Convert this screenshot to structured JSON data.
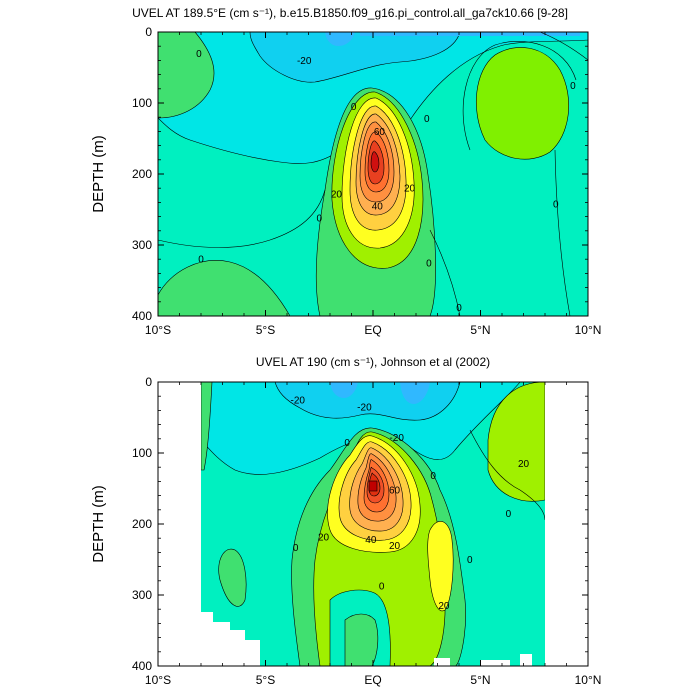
{
  "chart_data": [
    {
      "type": "heatmap",
      "subtype": "filled-contour",
      "title": "UVEL AT 189.5°E (cm s⁻¹), b.e15.B1850.f09_g16.pi_control.all_ga7ck10.66 [9-28]",
      "xlabel": "",
      "ylabel": "DEPTH (m)",
      "xlim": [
        -10,
        10
      ],
      "ylim": [
        400,
        0
      ],
      "y_reversed": true,
      "x_ticks": [
        -10,
        -5,
        0,
        5,
        10
      ],
      "x_tick_labels": [
        "10°S",
        "5°S",
        "EQ",
        "5°N",
        "10°N"
      ],
      "y_ticks": [
        0,
        100,
        200,
        300,
        400
      ],
      "y_tick_labels": [
        "0",
        "100",
        "200",
        "300",
        "400"
      ],
      "contour_interval": 10,
      "data_extent": {
        "lon_min": -10,
        "lon_max": 10
      },
      "features": [
        {
          "name": "Equatorial Undercurrent core",
          "x": 0,
          "y": 165,
          "max": 80
        },
        {
          "name": "Surface westward flow",
          "x": -3,
          "y": 0,
          "min": -30
        },
        {
          "name": "Eastward flow north",
          "x": 7,
          "y": 90,
          "value": 10
        },
        {
          "name": "Eastward flow south",
          "x": -8,
          "y": 360,
          "value": 10
        }
      ],
      "contour_labels": [
        {
          "text": "0",
          "x": -8.1,
          "y": 30
        },
        {
          "text": "-20",
          "x": -3.2,
          "y": 40
        },
        {
          "text": "0",
          "x": -0.9,
          "y": 105
        },
        {
          "text": "0",
          "x": 2.5,
          "y": 122
        },
        {
          "text": "0",
          "x": 9.3,
          "y": 75
        },
        {
          "text": "60",
          "x": 0.3,
          "y": 140
        },
        {
          "text": "20",
          "x": -1.7,
          "y": 228
        },
        {
          "text": "20",
          "x": 1.7,
          "y": 220
        },
        {
          "text": "40",
          "x": 0.2,
          "y": 245
        },
        {
          "text": "0",
          "x": -2.5,
          "y": 262
        },
        {
          "text": "0",
          "x": 8.5,
          "y": 242
        },
        {
          "text": "0",
          "x": -8.0,
          "y": 320
        },
        {
          "text": "0",
          "x": 2.6,
          "y": 325
        },
        {
          "text": "0",
          "x": 4.0,
          "y": 388
        }
      ]
    },
    {
      "type": "heatmap",
      "subtype": "filled-contour",
      "title": "UVEL AT 190 (cm s⁻¹), Johnson et al (2002)",
      "xlabel": "",
      "ylabel": "DEPTH (m)",
      "xlim": [
        -10,
        10
      ],
      "ylim": [
        400,
        0
      ],
      "y_reversed": true,
      "x_ticks": [
        -10,
        -5,
        0,
        5,
        10
      ],
      "x_tick_labels": [
        "10°S",
        "5°S",
        "EQ",
        "5°N",
        "10°N"
      ],
      "y_ticks": [
        0,
        100,
        200,
        300,
        400
      ],
      "y_tick_labels": [
        "0",
        "100",
        "200",
        "300",
        "400"
      ],
      "contour_interval": 10,
      "data_extent": {
        "lon_min": -8,
        "lon_max": 8
      },
      "features": [
        {
          "name": "Equatorial Undercurrent core",
          "x": 0,
          "y": 150,
          "max": 90
        },
        {
          "name": "Surface westward flow",
          "x": 0,
          "y": 20,
          "min": -30
        },
        {
          "name": "Eastward flow north",
          "x": 6.5,
          "y": 70,
          "value": 30
        },
        {
          "name": "Subsurface eastward jet",
          "x": 3,
          "y": 240,
          "value": 30
        }
      ],
      "contour_labels": [
        {
          "text": "-20",
          "x": -3.5,
          "y": 25
        },
        {
          "text": "-20",
          "x": -0.4,
          "y": 35
        },
        {
          "text": "0",
          "x": -1.2,
          "y": 85
        },
        {
          "text": "-20",
          "x": 1.1,
          "y": 78
        },
        {
          "text": "0",
          "x": 2.8,
          "y": 132
        },
        {
          "text": "60",
          "x": 1.0,
          "y": 152
        },
        {
          "text": "20",
          "x": -2.3,
          "y": 218
        },
        {
          "text": "40",
          "x": -0.1,
          "y": 222
        },
        {
          "text": "20",
          "x": 1.0,
          "y": 230
        },
        {
          "text": "20",
          "x": 7.0,
          "y": 115
        },
        {
          "text": "0",
          "x": 6.3,
          "y": 185
        },
        {
          "text": "0",
          "x": -3.6,
          "y": 233
        },
        {
          "text": "0",
          "x": 4.5,
          "y": 250
        },
        {
          "text": "0",
          "x": 0.4,
          "y": 287
        },
        {
          "text": "20",
          "x": 3.3,
          "y": 315
        }
      ]
    }
  ]
}
